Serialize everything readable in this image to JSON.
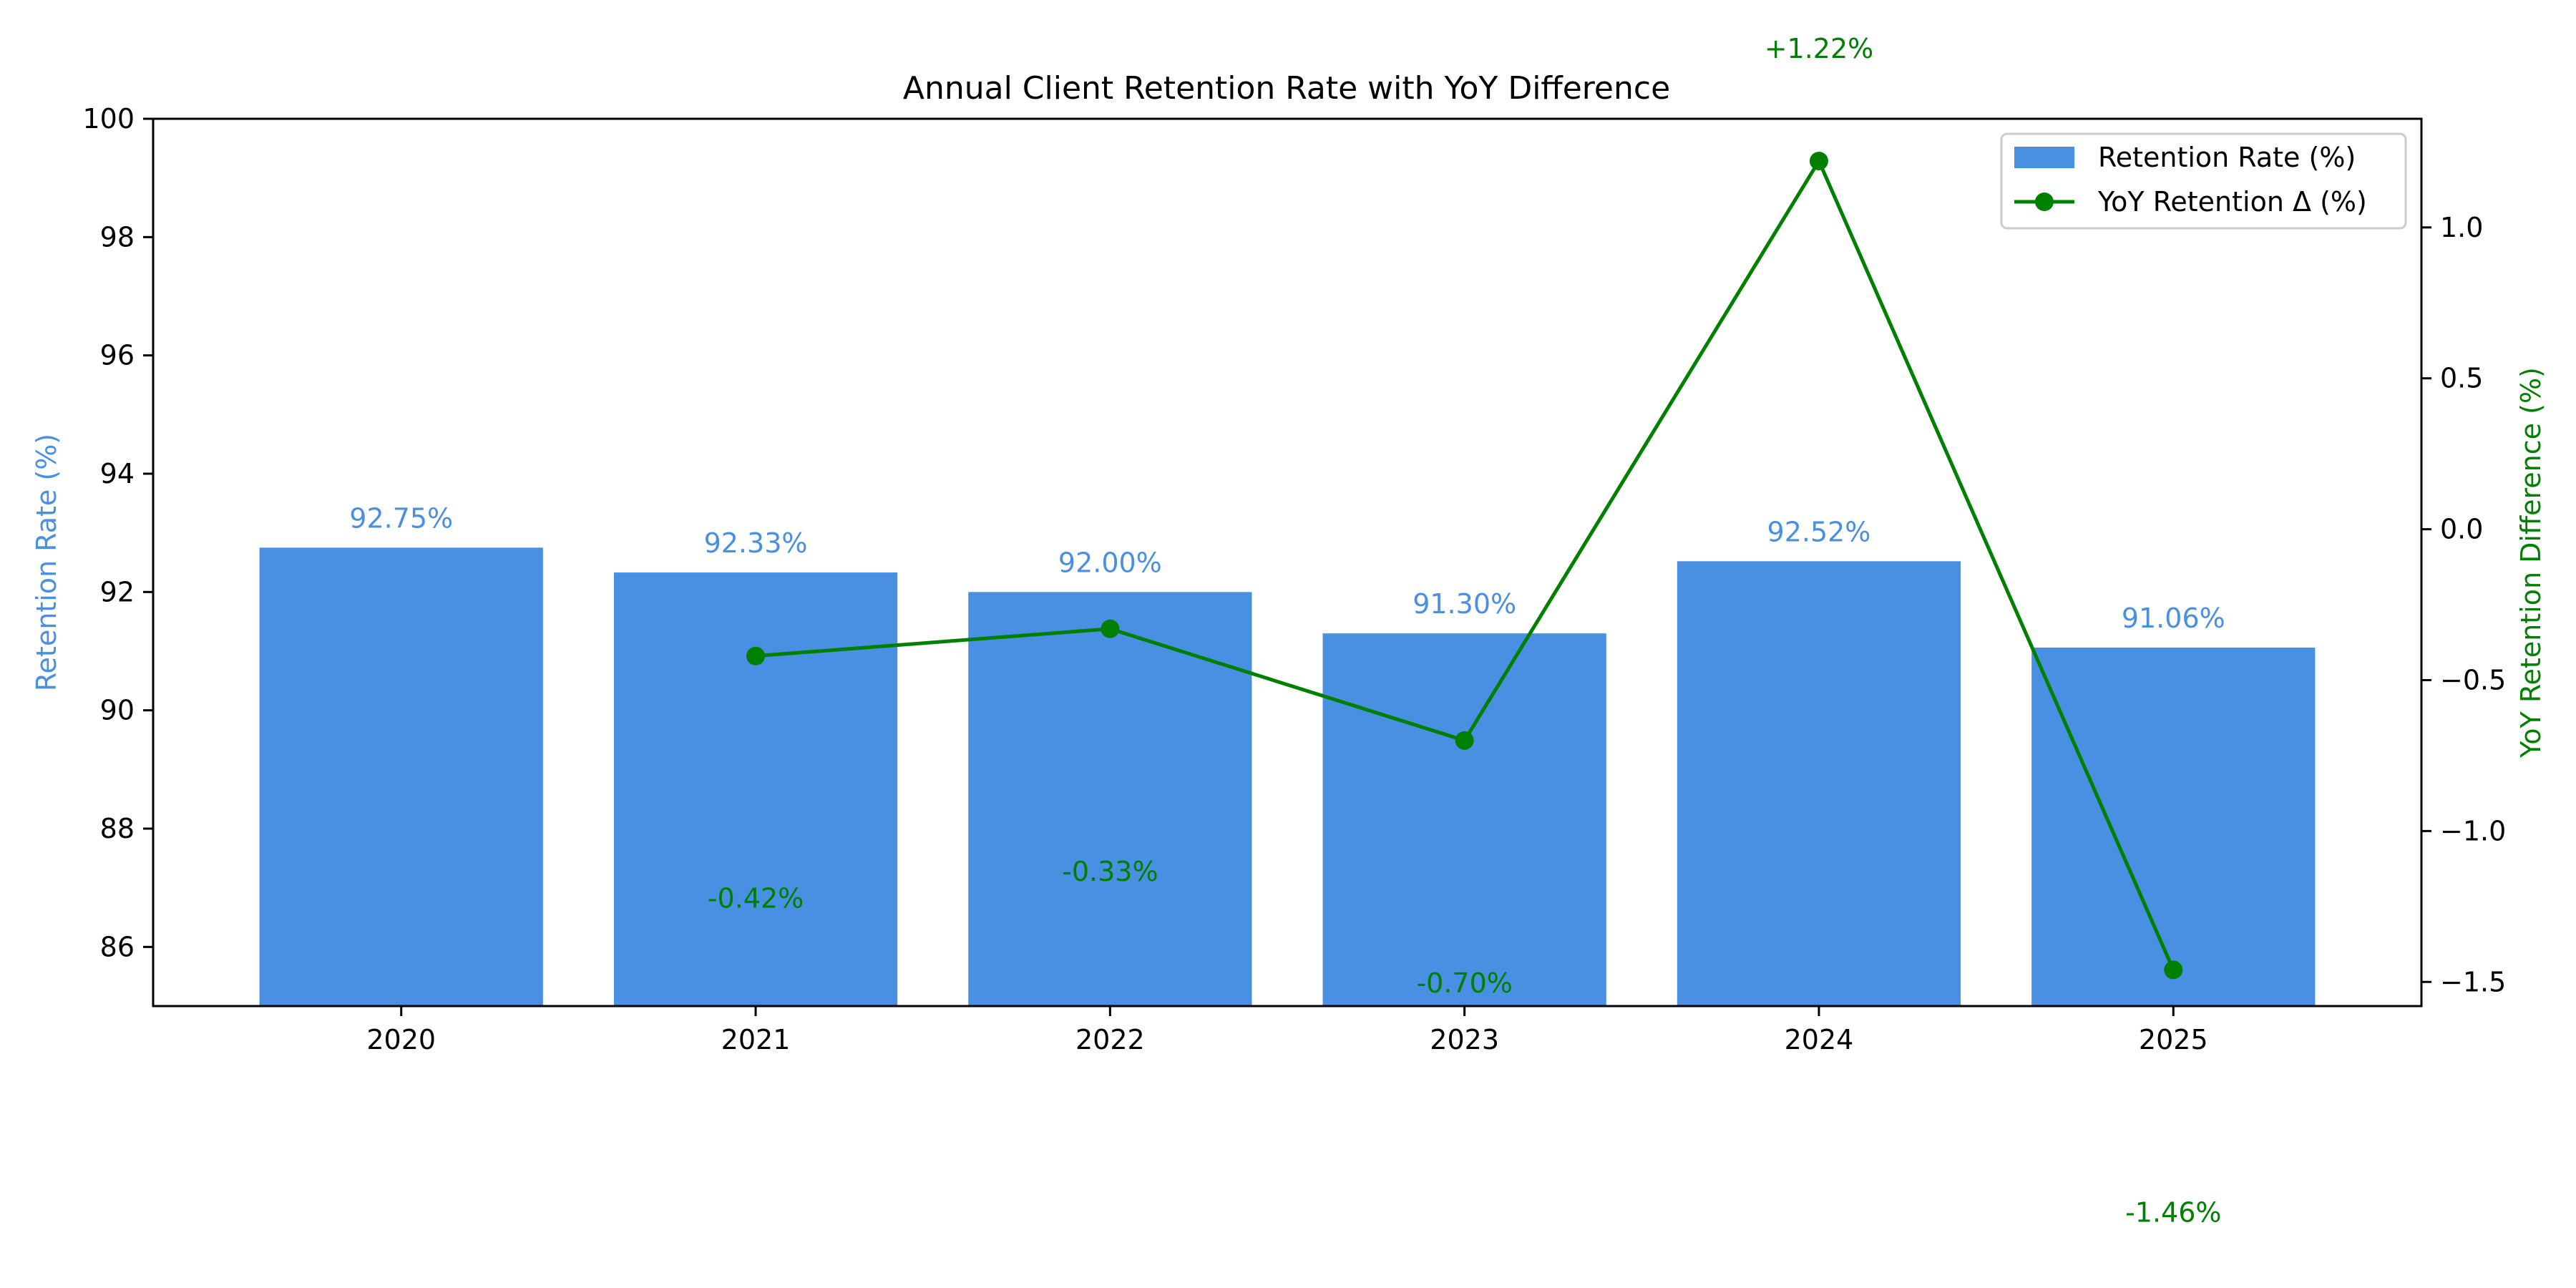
{
  "chart_data": {
    "type": "bar",
    "title": "Annual Client Retention Rate with YoY Difference",
    "categories": [
      "2020",
      "2021",
      "2022",
      "2023",
      "2024",
      "2025"
    ],
    "ylabel": "Retention Rate (%)",
    "y2label": "YoY Retention Difference (%)",
    "ylim": [
      85,
      100
    ],
    "y2lim": [
      -1.58,
      1.36
    ],
    "yticks": [
      "86",
      "88",
      "90",
      "92",
      "94",
      "96",
      "98",
      "100"
    ],
    "y2ticks": [
      "−1.5",
      "−1.0",
      "−0.5",
      "0.0",
      "0.5",
      "1.0"
    ],
    "grid": false,
    "legend_position": "top-right",
    "colors": {
      "bars": "#4a90e2",
      "line": "#008000"
    },
    "series": [
      {
        "name": "Retention Rate (%)",
        "type": "bar",
        "axis": "left",
        "values": [
          92.75,
          92.33,
          92.0,
          91.3,
          92.52,
          91.06
        ],
        "labels": [
          "92.75%",
          "92.33%",
          "92.00%",
          "91.30%",
          "92.52%",
          "91.06%"
        ]
      },
      {
        "name": "YoY Retention Δ (%)",
        "type": "line",
        "axis": "right",
        "values": [
          null,
          -0.42,
          -0.33,
          -0.7,
          1.22,
          -1.46
        ],
        "labels": [
          "",
          "-0.42%",
          "-0.33%",
          "-0.70%",
          "+1.22%",
          "-1.46%"
        ]
      }
    ]
  }
}
